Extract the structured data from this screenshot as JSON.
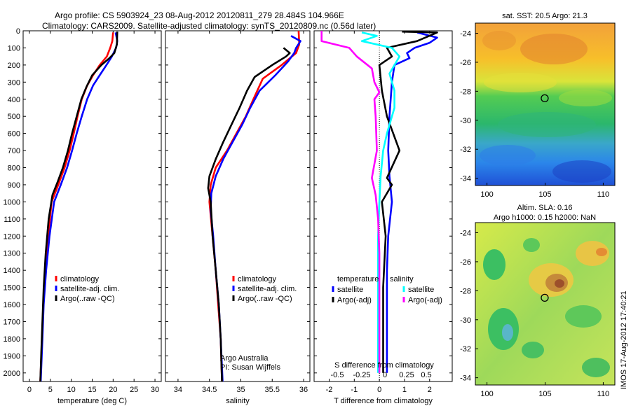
{
  "title_lines": [
    "Argo profile: CS 5903924_23 08-Aug-2012 20120811_279 28.484S 104.966E",
    "Climatology: CARS2009. Satellite-adjusted climatology: synTS_20120809.nc (0.56d later)"
  ],
  "colors": {
    "climatology": "#ff0000",
    "satellite": "#0000ff",
    "argo": "#000000",
    "sat_s": "#00ffff",
    "argo_s": "#ff00ff"
  },
  "chart_data": [
    {
      "type": "line",
      "xlabel": "temperature (deg C)",
      "ylim": [
        0,
        2050
      ],
      "xlim": [
        -1.5,
        31.5
      ],
      "xticks": [
        "0",
        "5",
        "10",
        "15",
        "20",
        "25",
        "30"
      ],
      "yticks": [
        "0",
        "100",
        "200",
        "300",
        "400",
        "500",
        "600",
        "700",
        "800",
        "900",
        "1000",
        "1100",
        "1200",
        "1300",
        "1400",
        "1500",
        "1600",
        "1700",
        "1800",
        "1900",
        "2000"
      ],
      "legend": [
        "climatology",
        "satellite-adj. clim.",
        "Argo(..raw -QC)"
      ],
      "series": [
        {
          "name": "climatology",
          "color": "#ff0000",
          "points": [
            [
              20,
              10
            ],
            [
              19.8,
              60
            ],
            [
              19.3,
              100
            ],
            [
              18.5,
              150
            ],
            [
              16.8,
              200
            ],
            [
              15.2,
              260
            ],
            [
              13.8,
              320
            ],
            [
              12.5,
              400
            ],
            [
              11.5,
              500
            ],
            [
              10.6,
              600
            ],
            [
              9.6,
              700
            ],
            [
              8.4,
              800
            ],
            [
              6.9,
              900
            ],
            [
              5.3,
              1000
            ],
            [
              4.5,
              1200
            ],
            [
              3.8,
              1400
            ],
            [
              3.3,
              1600
            ],
            [
              3,
              1800
            ],
            [
              2.6,
              2050
            ]
          ]
        },
        {
          "name": "satellite-adj. clim.",
          "color": "#0000ff",
          "points": [
            [
              20.6,
              10
            ],
            [
              21,
              60
            ],
            [
              20.7,
              100
            ],
            [
              19.7,
              150
            ],
            [
              18.4,
              200
            ],
            [
              16.8,
              260
            ],
            [
              15.2,
              320
            ],
            [
              13.8,
              400
            ],
            [
              12.5,
              500
            ],
            [
              11.3,
              600
            ],
            [
              10.2,
              700
            ],
            [
              9,
              800
            ],
            [
              7.5,
              900
            ],
            [
              5.9,
              1000
            ],
            [
              4.8,
              1200
            ],
            [
              4,
              1400
            ],
            [
              3.4,
              1600
            ],
            [
              3.1,
              1800
            ],
            [
              2.7,
              2050
            ]
          ]
        },
        {
          "name": "Argo(..raw -QC)",
          "color": "#000000",
          "points": [
            [
              21,
              5
            ],
            [
              20.9,
              80
            ],
            [
              20.3,
              130
            ],
            [
              19.1,
              160
            ],
            [
              17.2,
              200
            ],
            [
              15,
              260
            ],
            [
              13.6,
              330
            ],
            [
              12.4,
              400
            ],
            [
              11.3,
              500
            ],
            [
              10.2,
              600
            ],
            [
              9.2,
              700
            ],
            [
              8,
              800
            ],
            [
              6.8,
              880
            ],
            [
              5.5,
              960
            ],
            [
              4.6,
              1100
            ],
            [
              3.9,
              1300
            ],
            [
              3.4,
              1500
            ],
            [
              3.1,
              1700
            ],
            [
              2.8,
              1900
            ],
            [
              2.6,
              2050
            ]
          ]
        }
      ]
    },
    {
      "type": "line",
      "xlabel": "salinity",
      "ylim": [
        0,
        2050
      ],
      "xlim": [
        33.8,
        36.1
      ],
      "xticks": [
        "34",
        "34.5",
        "35",
        "35.5",
        "36"
      ],
      "legend": [
        "climatology",
        "satellite-adj. clim.",
        "Argo(..raw -QC)"
      ],
      "annotation": [
        "Argo Australia",
        "PI: Susan Wijffels"
      ],
      "series": [
        {
          "name": "climatology",
          "color": "#ff0000",
          "points": [
            [
              35.92,
              0
            ],
            [
              35.93,
              80
            ],
            [
              35.88,
              130
            ],
            [
              35.65,
              200
            ],
            [
              35.35,
              280
            ],
            [
              35.2,
              400
            ],
            [
              35.08,
              500
            ],
            [
              34.93,
              600
            ],
            [
              34.78,
              700
            ],
            [
              34.6,
              800
            ],
            [
              34.52,
              900
            ],
            [
              34.5,
              1000
            ],
            [
              34.55,
              1200
            ],
            [
              34.6,
              1400
            ],
            [
              34.64,
              1600
            ],
            [
              34.68,
              1800
            ],
            [
              34.7,
              2050
            ]
          ]
        },
        {
          "name": "satellite-adj. clim.",
          "color": "#0000ff",
          "points": [
            [
              35.8,
              30
            ],
            [
              35.95,
              60
            ],
            [
              35.88,
              100
            ],
            [
              35.85,
              130
            ],
            [
              35.75,
              180
            ],
            [
              35.55,
              260
            ],
            [
              35.3,
              350
            ],
            [
              35.15,
              450
            ],
            [
              35.02,
              550
            ],
            [
              34.87,
              650
            ],
            [
              34.72,
              750
            ],
            [
              34.6,
              850
            ],
            [
              34.53,
              950
            ],
            [
              34.52,
              1050
            ],
            [
              34.56,
              1200
            ],
            [
              34.6,
              1400
            ],
            [
              34.65,
              1600
            ],
            [
              34.68,
              1800
            ],
            [
              34.71,
              2050
            ]
          ]
        },
        {
          "name": "Argo(..raw -QC)",
          "color": "#000000",
          "points": [
            [
              35.68,
              100
            ],
            [
              35.78,
              130
            ],
            [
              35.72,
              150
            ],
            [
              35.5,
              200
            ],
            [
              35.22,
              270
            ],
            [
              35.1,
              350
            ],
            [
              34.98,
              450
            ],
            [
              34.85,
              550
            ],
            [
              34.72,
              650
            ],
            [
              34.6,
              750
            ],
            [
              34.5,
              850
            ],
            [
              34.48,
              920
            ],
            [
              34.52,
              1000
            ],
            [
              34.55,
              1200
            ],
            [
              34.6,
              1400
            ],
            [
              34.65,
              1600
            ],
            [
              34.68,
              1800
            ],
            [
              34.7,
              2050
            ]
          ]
        }
      ]
    },
    {
      "type": "line",
      "xlabel": "T difference from climatology",
      "xlabel2": "S difference from climatology",
      "ylim": [
        0,
        2050
      ],
      "xlim": [
        -2.6,
        2.9
      ],
      "xticks": [
        "-2",
        "-1",
        "0",
        "1",
        "2"
      ],
      "xticks2": [
        "-0.5",
        "-0.25",
        "0",
        "0.25",
        "0.5"
      ],
      "legend_titles": [
        "temperature",
        "salinity"
      ],
      "legend": [
        "satellite",
        "Argo(-adj)",
        "satellite",
        "Argo(-adj)"
      ],
      "series": [
        {
          "name": "temperature satellite",
          "color": "#0000ff",
          "points": [
            [
              1.5,
              10
            ],
            [
              2.3,
              40
            ],
            [
              2,
              70
            ],
            [
              1.4,
              100
            ],
            [
              1.1,
              130
            ],
            [
              1.2,
              160
            ],
            [
              0.6,
              200
            ],
            [
              0.5,
              300
            ],
            [
              0.4,
              500
            ],
            [
              0.35,
              700
            ],
            [
              0.4,
              850
            ],
            [
              0.5,
              1000
            ],
            [
              0.35,
              1200
            ],
            [
              0.3,
              1400
            ],
            [
              0.3,
              1600
            ],
            [
              0.3,
              1800
            ],
            [
              0.3,
              2000
            ]
          ]
        },
        {
          "name": "temperature Argo(-adj)",
          "color": "#000000",
          "points": [
            [
              0.9,
              5
            ],
            [
              2.3,
              10
            ],
            [
              1.5,
              60
            ],
            [
              0.3,
              100
            ],
            [
              0.5,
              150
            ],
            [
              0,
              200
            ],
            [
              0.1,
              350
            ],
            [
              0.3,
              500
            ],
            [
              0.8,
              700
            ],
            [
              0.3,
              860
            ],
            [
              0.5,
              900
            ],
            [
              0.1,
              1000
            ],
            [
              0.25,
              1200
            ],
            [
              0.15,
              1500
            ],
            [
              0.15,
              1800
            ],
            [
              0.15,
              2000
            ]
          ]
        },
        {
          "name": "salinity satellite",
          "color": "#00ffff",
          "points": [
            [
              -0.7,
              10
            ],
            [
              -0.1,
              30
            ],
            [
              -0.7,
              60
            ],
            [
              0.5,
              100
            ],
            [
              0.8,
              150
            ],
            [
              0.4,
              250
            ],
            [
              0.6,
              350
            ],
            [
              0.6,
              450
            ],
            [
              0.3,
              600
            ],
            [
              0.15,
              700
            ],
            [
              0.05,
              850
            ],
            [
              0,
              1000
            ],
            [
              -0.05,
              1200
            ],
            [
              -0.05,
              1600
            ],
            [
              -0.05,
              2000
            ]
          ]
        },
        {
          "name": "salinity Argo(-adj)",
          "color": "#ff00ff",
          "points": [
            [
              -2.3,
              0
            ],
            [
              -2.3,
              60
            ],
            [
              -1.2,
              100
            ],
            [
              -0.9,
              150
            ],
            [
              -0.3,
              220
            ],
            [
              -0.2,
              300
            ],
            [
              0,
              360
            ],
            [
              -0.2,
              400
            ],
            [
              -0.15,
              500
            ],
            [
              -0.1,
              700
            ],
            [
              -0.3,
              860
            ],
            [
              -0.15,
              960
            ],
            [
              -0.05,
              1100
            ],
            [
              0,
              1300
            ],
            [
              0,
              1600
            ],
            [
              0,
              2000
            ]
          ]
        }
      ]
    },
    {
      "type": "heatmap",
      "title": "sat. SST: 20.5 Argo: 21.3",
      "xticks": [
        "100",
        "105",
        "110"
      ],
      "yticks": [
        "-24",
        "-26",
        "-28",
        "-30",
        "-32",
        "-34"
      ],
      "xlim": [
        99,
        111
      ],
      "ylim": [
        -34.5,
        -23.3
      ],
      "marker": [
        104.966,
        -28.484
      ]
    },
    {
      "type": "heatmap",
      "title_lines": [
        "Altim. SLA: 0.16",
        "Argo h1000: 0.15 h2000: NaN"
      ],
      "xticks": [
        "100",
        "105",
        "110"
      ],
      "yticks": [
        "-24",
        "-26",
        "-28",
        "-30",
        "-32",
        "-34"
      ],
      "xlim": [
        99,
        111
      ],
      "ylim": [
        -34.5,
        -23.3
      ],
      "marker": [
        104.966,
        -28.484
      ]
    }
  ],
  "footer_stamp": "IMOS 17-Aug-2012 17:40:21"
}
